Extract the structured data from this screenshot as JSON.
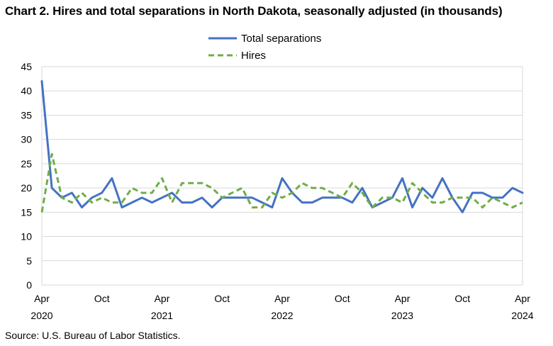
{
  "chart_data": {
    "type": "line",
    "title": "Chart 2. Hires and total separations in North Dakota, seasonally adjusted (in thousands)",
    "source": "Source: U.S. Bureau of Labor Statistics.",
    "ylim": [
      0,
      45
    ],
    "y_ticks": [
      "0",
      "5",
      "10",
      "15",
      "20",
      "25",
      "30",
      "35",
      "40",
      "45"
    ],
    "x_ticks": [
      {
        "month": "Apr",
        "year": "2020",
        "index": 0
      },
      {
        "month": "Oct",
        "year": "",
        "index": 6
      },
      {
        "month": "Apr",
        "year": "2021",
        "index": 12
      },
      {
        "month": "Oct",
        "year": "",
        "index": 18
      },
      {
        "month": "Apr",
        "year": "2022",
        "index": 24
      },
      {
        "month": "Oct",
        "year": "",
        "index": 30
      },
      {
        "month": "Apr",
        "year": "2023",
        "index": 36
      },
      {
        "month": "Oct",
        "year": "",
        "index": 42
      },
      {
        "month": "Apr",
        "year": "2024",
        "index": 48
      }
    ],
    "x_start": "Apr 2020",
    "x_end": "Apr 2024",
    "grid": "horizontal",
    "legend_position": "top-center",
    "series": [
      {
        "name": "Total separations",
        "color": "#4472C4",
        "style": "solid",
        "values": [
          42,
          20,
          18,
          19,
          16,
          18,
          19,
          22,
          16,
          17,
          18,
          17,
          18,
          19,
          17,
          17,
          18,
          16,
          18,
          18,
          18,
          18,
          17,
          16,
          22,
          19,
          17,
          17,
          18,
          18,
          18,
          17,
          20,
          16,
          17,
          18,
          22,
          16,
          20,
          18,
          22,
          18,
          15,
          19,
          19,
          18,
          18,
          20,
          19
        ]
      },
      {
        "name": "Hires",
        "color": "#70AD47",
        "style": "dashed",
        "values": [
          15,
          27,
          18,
          17,
          19,
          17,
          18,
          17,
          17,
          20,
          19,
          19,
          22,
          17,
          21,
          21,
          21,
          20,
          18,
          19,
          20,
          16,
          16,
          19,
          18,
          19,
          21,
          20,
          20,
          19,
          18,
          21,
          19,
          16,
          18,
          18,
          17,
          21,
          19,
          17,
          17,
          18,
          18,
          18,
          16,
          18,
          17,
          16,
          17
        ]
      }
    ]
  }
}
